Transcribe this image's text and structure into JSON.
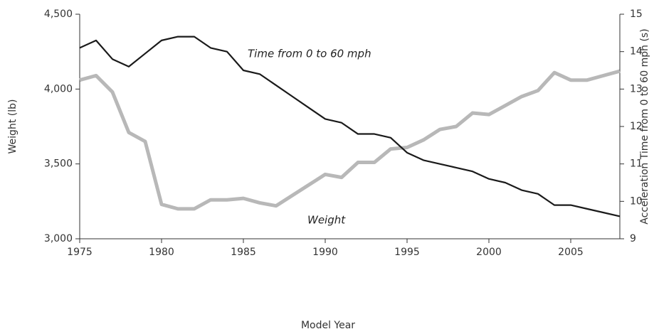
{
  "chart_data": {
    "type": "line",
    "xlabel": "Model Year",
    "ylabel": "Weight (lb)",
    "y2label": "Acceleration Time from 0 to 60 mph (s)",
    "annotations": [
      "Time from 0 to 60 mph",
      "Weight"
    ],
    "x": [
      1975,
      1976,
      1977,
      1978,
      1979,
      1980,
      1981,
      1982,
      1983,
      1984,
      1985,
      1986,
      1987,
      1988,
      1989,
      1990,
      1991,
      1992,
      1993,
      1994,
      1995,
      1996,
      1997,
      1998,
      1999,
      2000,
      2001,
      2002,
      2003,
      2004,
      2005,
      2006,
      2007,
      2008
    ],
    "series": [
      {
        "name": "Weight",
        "color": "#b8b8b8",
        "axis": "y",
        "values": [
          4060,
          4090,
          3980,
          3710,
          3650,
          3230,
          3200,
          3200,
          3260,
          3260,
          3270,
          3240,
          3220,
          3290,
          3360,
          3430,
          3410,
          3510,
          3510,
          3600,
          3610,
          3660,
          3730,
          3750,
          3840,
          3830,
          3890,
          3950,
          3990,
          4110,
          4060,
          4060,
          4090,
          4120
        ]
      },
      {
        "name": "Time from 0 to 60 mph",
        "color": "#1a1a1a",
        "axis": "y2",
        "values": [
          14.1,
          14.3,
          13.8,
          13.6,
          13.95,
          14.3,
          14.4,
          14.4,
          14.1,
          14.0,
          13.5,
          13.4,
          13.1,
          12.8,
          12.5,
          12.2,
          12.1,
          11.8,
          11.8,
          11.7,
          11.3,
          11.1,
          11.0,
          10.9,
          10.8,
          10.6,
          10.5,
          10.3,
          10.2,
          9.9,
          9.9,
          9.8,
          9.7,
          9.6
        ]
      }
    ],
    "xlim": [
      1975,
      2008
    ],
    "xticks": [
      1975,
      1980,
      1985,
      1990,
      1995,
      2000,
      2005
    ],
    "ylim": [
      3000,
      4500
    ],
    "yticks": [
      {
        "value": 3000,
        "label": "3,000"
      },
      {
        "value": 3500,
        "label": "3,500"
      },
      {
        "value": 4000,
        "label": "4,000"
      },
      {
        "value": 4500,
        "label": "4,500"
      }
    ],
    "y2lim": [
      9,
      15
    ],
    "y2ticks": [
      9,
      10,
      11,
      12,
      13,
      14,
      15
    ],
    "grid": false
  }
}
